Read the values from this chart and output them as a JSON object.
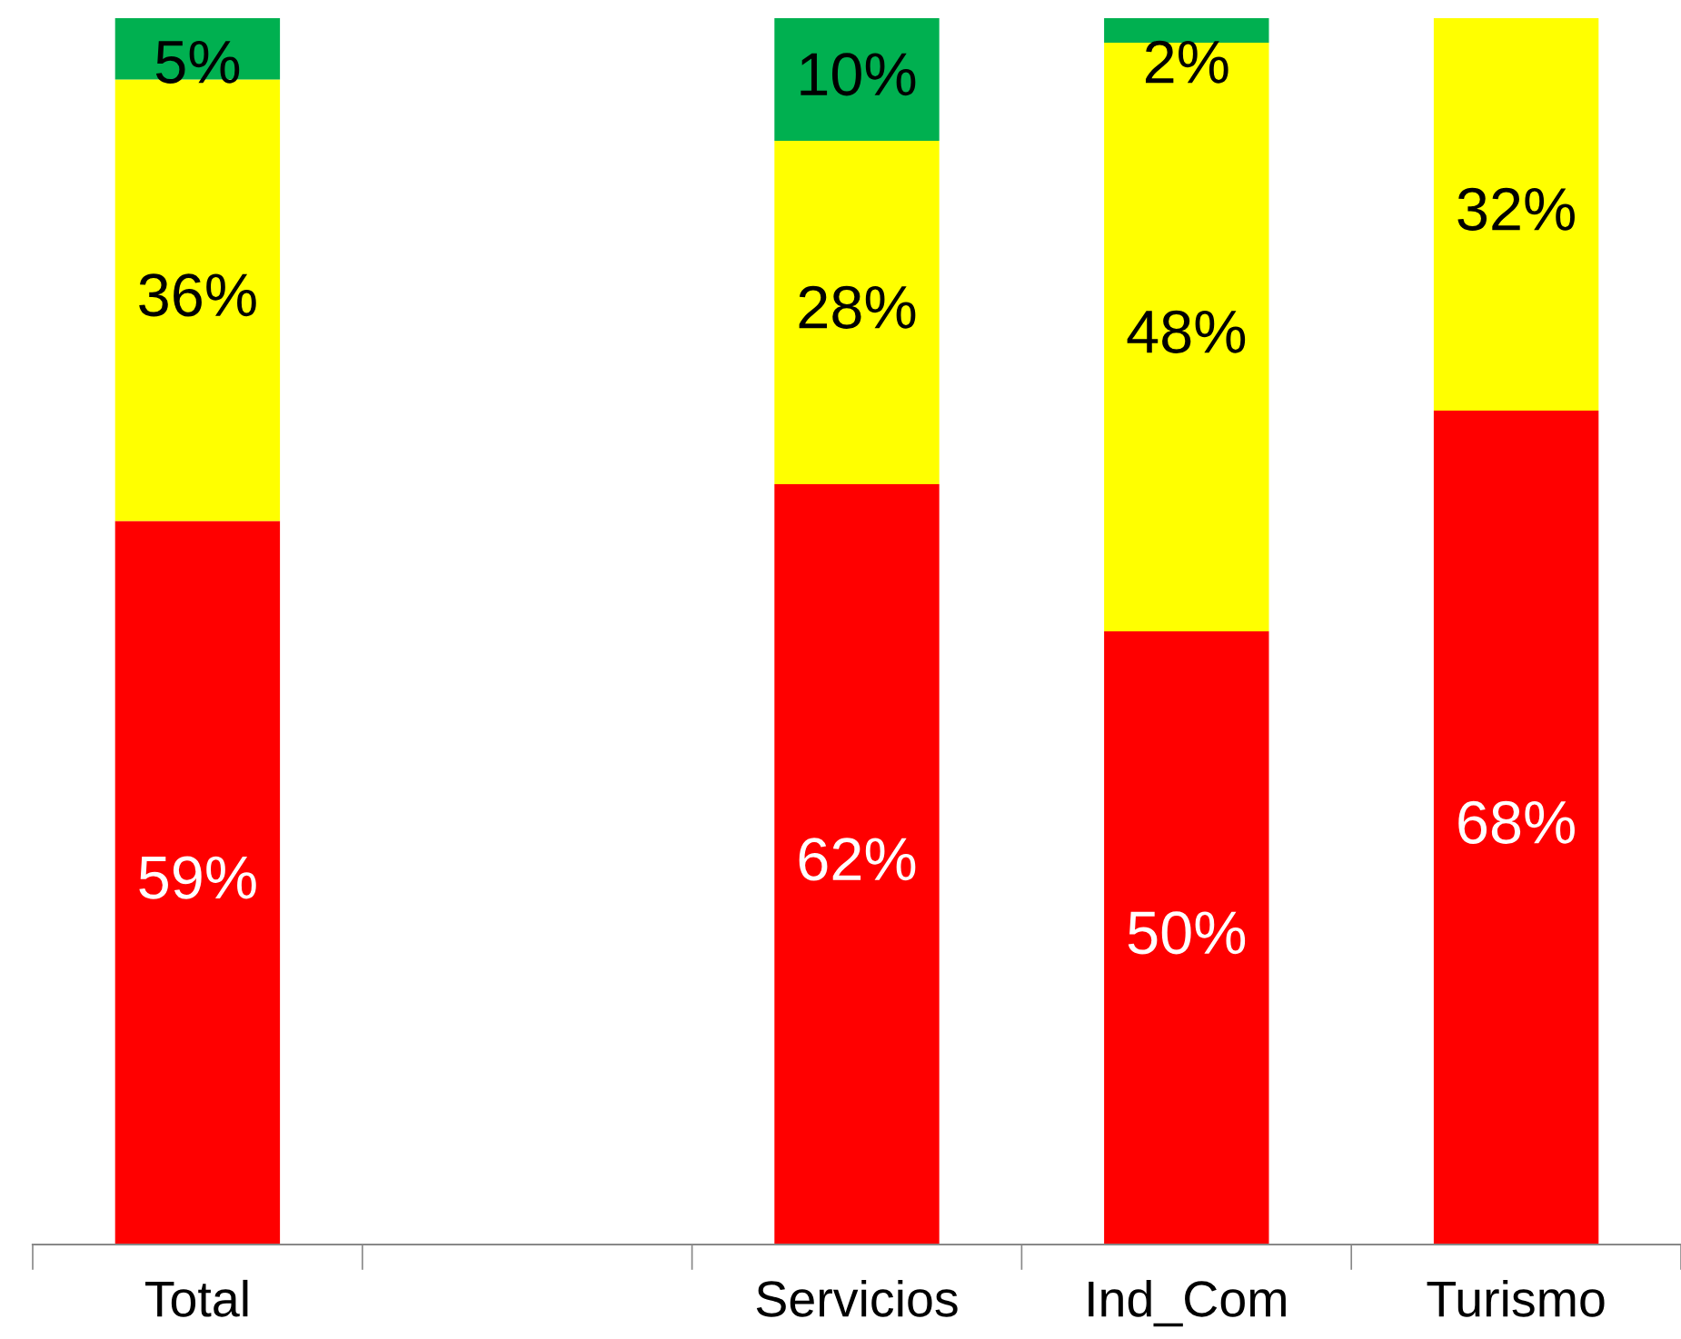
{
  "chart_data": {
    "type": "bar",
    "stacked": true,
    "categories": [
      "Total",
      null,
      "Servicios",
      "Ind_Com",
      "Turismo"
    ],
    "series": [
      {
        "color": "#ff0000",
        "values": [
          59,
          null,
          62,
          50,
          68
        ],
        "value_labels": [
          "59%",
          null,
          "62%",
          "50%",
          "68%"
        ]
      },
      {
        "color": "#ffff00",
        "values": [
          36,
          null,
          28,
          48,
          32
        ],
        "value_labels": [
          "36%",
          null,
          "28%",
          "48%",
          "32%"
        ]
      },
      {
        "color": "#00b050",
        "values": [
          5,
          null,
          10,
          2,
          null
        ],
        "value_labels": [
          "5%",
          null,
          "10%",
          "2%",
          null
        ]
      }
    ],
    "grid": false,
    "legend": false
  }
}
